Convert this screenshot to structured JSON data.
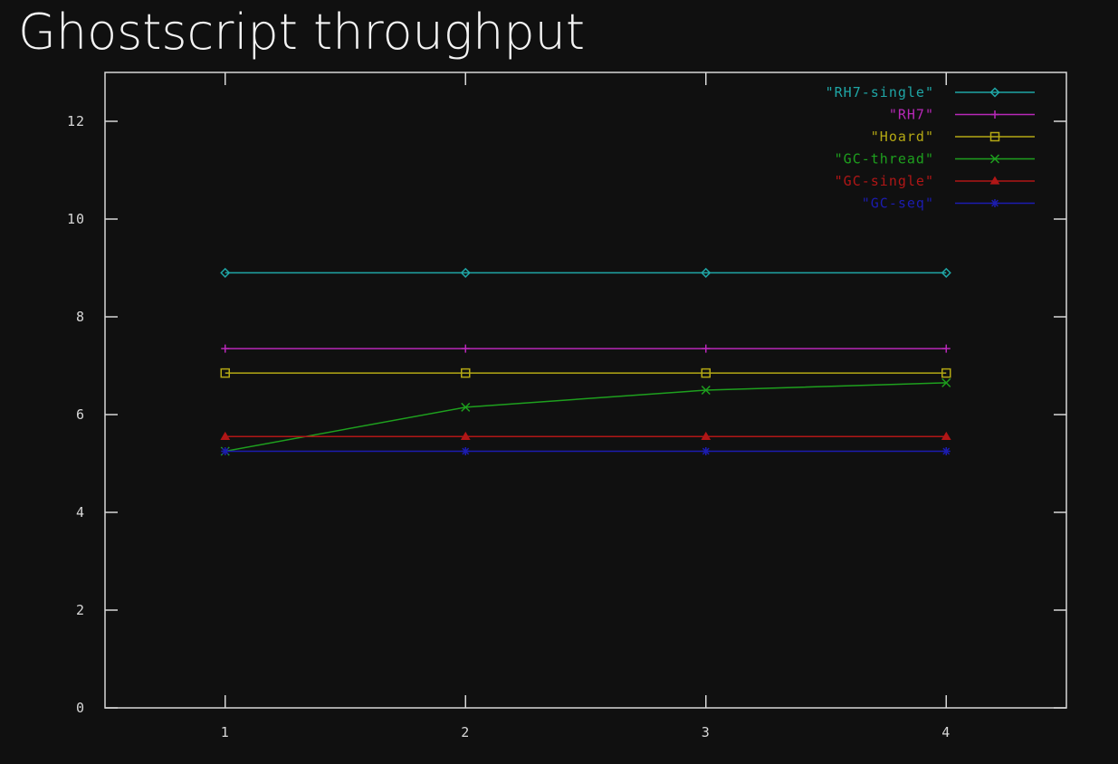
{
  "title": "Ghostscript throughput",
  "chart_data": {
    "type": "line",
    "title": "Ghostscript throughput",
    "xlabel": "",
    "ylabel": "",
    "x": [
      1,
      2,
      3,
      4
    ],
    "xlim": [
      0.5,
      4.5
    ],
    "ylim": [
      0,
      13
    ],
    "xticks": [
      1,
      2,
      3,
      4
    ],
    "yticks": [
      0,
      2,
      4,
      6,
      8,
      10,
      12
    ],
    "grid": false,
    "legend_position": "top-right",
    "series": [
      {
        "name": "\"RH7-single\"",
        "values": [
          8.9,
          8.9,
          8.9,
          8.9
        ],
        "color": "#1fa6a6",
        "marker": "diamond"
      },
      {
        "name": "\"RH7\"",
        "values": [
          7.35,
          7.35,
          7.35,
          7.35
        ],
        "color": "#b828b8",
        "marker": "plus"
      },
      {
        "name": "\"Hoard\"",
        "values": [
          6.85,
          6.85,
          6.85,
          6.85
        ],
        "color": "#b4a814",
        "marker": "square"
      },
      {
        "name": "\"GC-thread\"",
        "values": [
          5.25,
          6.15,
          6.5,
          6.65
        ],
        "color": "#1ea01e",
        "marker": "cross"
      },
      {
        "name": "\"GC-single\"",
        "values": [
          5.55,
          5.55,
          5.55,
          5.55
        ],
        "color": "#b01616",
        "marker": "triangle"
      },
      {
        "name": "\"GC-seq\"",
        "values": [
          5.25,
          5.25,
          5.25,
          5.25
        ],
        "color": "#1c1cb0",
        "marker": "star"
      }
    ]
  },
  "colors": {
    "background": "#101010",
    "axis": "#d8d8d8",
    "title": "#f4f4f4"
  }
}
